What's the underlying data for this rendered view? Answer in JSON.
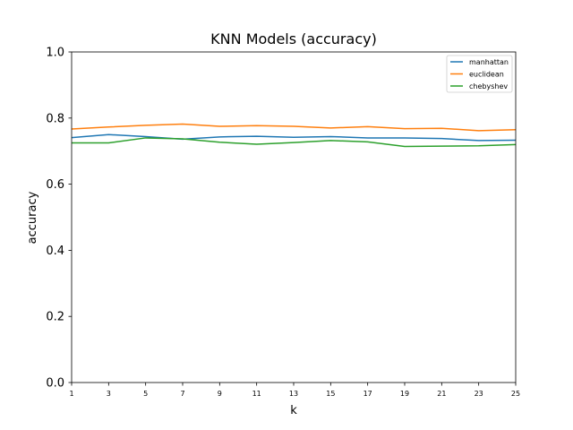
{
  "chart_data": {
    "type": "line",
    "title": "KNN Models (accuracy)",
    "xlabel": "k",
    "ylabel": "accuracy",
    "x": [
      1,
      3,
      5,
      7,
      9,
      11,
      13,
      15,
      17,
      19,
      21,
      23,
      25
    ],
    "xlim": [
      1,
      25
    ],
    "ylim": [
      0,
      1
    ],
    "yticks": [
      0.0,
      0.2,
      0.4,
      0.6,
      0.8,
      1.0
    ],
    "ytick_labels": [
      "0.0",
      "0.2",
      "0.4",
      "0.6",
      "0.8",
      "1.0"
    ],
    "grid": false,
    "legend_position": "top-right",
    "series": [
      {
        "name": "manhattan",
        "color": "#1f77b4",
        "values": [
          0.741,
          0.75,
          0.744,
          0.736,
          0.743,
          0.745,
          0.742,
          0.744,
          0.74,
          0.74,
          0.738,
          0.732,
          0.733
        ]
      },
      {
        "name": "euclidean",
        "color": "#ff7f0e",
        "values": [
          0.767,
          0.773,
          0.778,
          0.782,
          0.775,
          0.777,
          0.775,
          0.77,
          0.774,
          0.768,
          0.769,
          0.762,
          0.765
        ]
      },
      {
        "name": "chebyshev",
        "color": "#2ca02c",
        "values": [
          0.725,
          0.725,
          0.74,
          0.737,
          0.727,
          0.721,
          0.726,
          0.732,
          0.728,
          0.714,
          0.715,
          0.716,
          0.72
        ]
      }
    ]
  }
}
